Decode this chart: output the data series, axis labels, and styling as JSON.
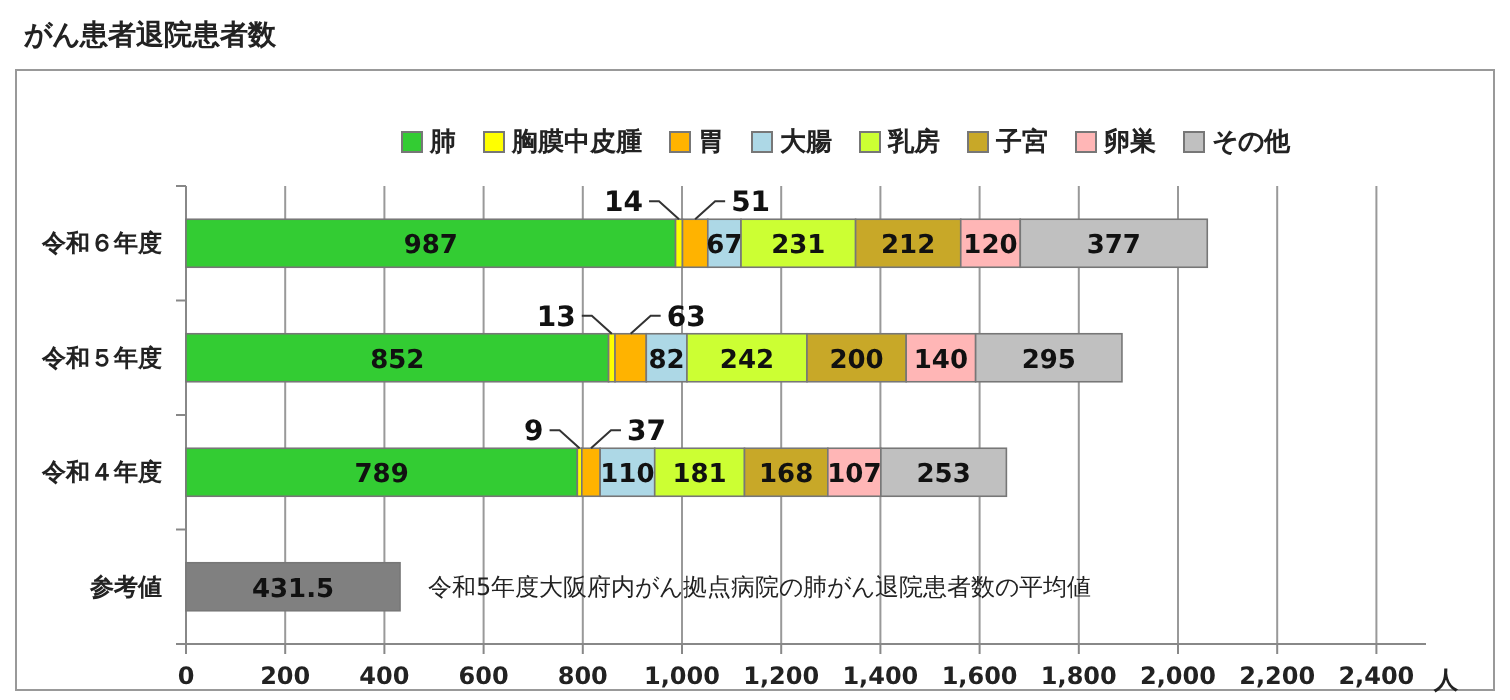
{
  "chart_data": {
    "type": "bar",
    "orientation": "horizontal",
    "stacked": true,
    "title": "がん患者退院患者数",
    "xlabel": "人",
    "categories": [
      "令和６年度",
      "令和５年度",
      "令和４年度",
      "参考値"
    ],
    "series": [
      {
        "name": "肺",
        "color": "#33cc33",
        "values": [
          987,
          852,
          789,
          null
        ]
      },
      {
        "name": "胸膜中皮腫",
        "color": "#ffff00",
        "values": [
          14,
          13,
          9,
          null
        ]
      },
      {
        "name": "胃",
        "color": "#ffb300",
        "values": [
          51,
          63,
          37,
          null
        ]
      },
      {
        "name": "大腸",
        "color": "#add8e6",
        "values": [
          67,
          82,
          110,
          null
        ]
      },
      {
        "name": "乳房",
        "color": "#ccff33",
        "values": [
          231,
          242,
          181,
          null
        ]
      },
      {
        "name": "子宮",
        "color": "#c8a828",
        "values": [
          212,
          200,
          168,
          null
        ]
      },
      {
        "name": "卵巣",
        "color": "#ffb6b6",
        "values": [
          120,
          140,
          107,
          null
        ]
      },
      {
        "name": "その他",
        "color": "#c0c0c0",
        "values": [
          377,
          295,
          253,
          null
        ]
      },
      {
        "color": "#808080",
        "values": [
          null,
          null,
          null,
          431.5
        ]
      }
    ],
    "annotations": [
      "令和5年度大阪府内がん拠点病院の肺がん退院患者数の平均値"
    ],
    "xlim": [
      0,
      2500
    ],
    "xticks": [
      0,
      200,
      400,
      600,
      800,
      {
        "value": 1000,
        "label": "1,000"
      },
      {
        "value": 1200,
        "label": "1,200"
      },
      {
        "value": 1400,
        "label": "1,400"
      },
      {
        "value": 1600,
        "label": "1,600"
      },
      {
        "value": 1800,
        "label": "1,800"
      },
      {
        "value": 2000,
        "label": "2,000"
      },
      {
        "value": 2200,
        "label": "2,200"
      },
      {
        "value": 2400,
        "label": "2,400"
      }
    ],
    "grid": "x",
    "legend": "top",
    "data_labels": true
  }
}
